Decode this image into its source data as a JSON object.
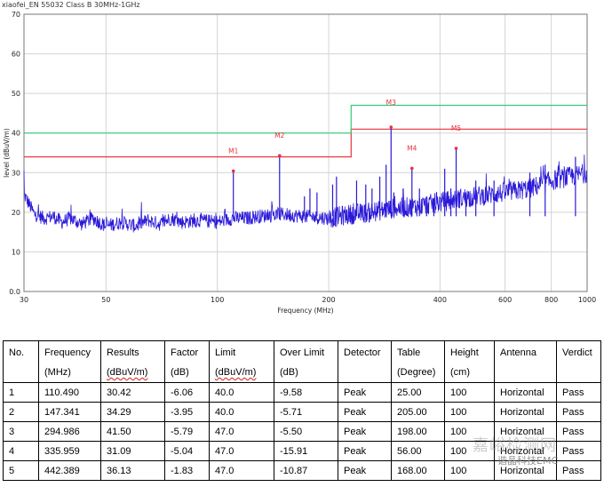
{
  "chart_data": {
    "type": "line",
    "title": "xiaofei_EN 55032 Class B 30MHz-1GHz",
    "xlabel": "Frequency (MHz)",
    "ylabel": "level (dBuV/m)",
    "xscale": "log",
    "xlim": [
      30,
      1000
    ],
    "ylim": [
      0,
      70
    ],
    "x_ticks": [
      30,
      50,
      100,
      200,
      400,
      600,
      800,
      1000
    ],
    "x_tick_labels": [
      "30",
      "50",
      "100",
      "200",
      "400",
      "600",
      "800",
      "1000"
    ],
    "y_ticks": [
      0,
      10,
      20,
      30,
      40,
      50,
      60,
      70
    ],
    "y_tick_labels": [
      "0.0",
      "10",
      "20",
      "30",
      "40",
      "50",
      "60",
      "70"
    ],
    "grid": true,
    "series": [
      {
        "kind": "limit-qp",
        "color": "#e8323c",
        "points": [
          [
            30,
            34
          ],
          [
            230,
            34
          ],
          [
            230,
            41
          ],
          [
            1000,
            41
          ]
        ]
      },
      {
        "kind": "limit-avg",
        "color": "#33cc77",
        "points": [
          [
            30,
            40
          ],
          [
            230,
            40
          ],
          [
            230,
            47
          ],
          [
            1000,
            47
          ]
        ]
      },
      {
        "kind": "trace",
        "color": "#2a18d8",
        "points": [
          [
            30,
            24.5
          ],
          [
            31,
            22
          ],
          [
            32,
            19.5
          ],
          [
            34,
            18.5
          ],
          [
            36,
            19
          ],
          [
            38,
            17.5
          ],
          [
            40,
            18.5
          ],
          [
            43,
            17
          ],
          [
            46,
            18.5
          ],
          [
            50,
            16.5
          ],
          [
            55,
            17.5
          ],
          [
            60,
            16.5
          ],
          [
            65,
            18
          ],
          [
            70,
            17
          ],
          [
            75,
            18.5
          ],
          [
            80,
            17.5
          ],
          [
            90,
            18
          ],
          [
            100,
            17.5
          ],
          [
            110,
            18.5
          ],
          [
            120,
            18.5
          ],
          [
            130,
            19
          ],
          [
            150,
            19.5
          ],
          [
            170,
            19
          ],
          [
            200,
            18.5
          ],
          [
            230,
            19.5
          ],
          [
            260,
            20
          ],
          [
            300,
            21
          ],
          [
            350,
            21.5
          ],
          [
            400,
            22.5
          ],
          [
            450,
            23.5
          ],
          [
            500,
            24
          ],
          [
            550,
            24.5
          ],
          [
            600,
            25
          ],
          [
            650,
            25.5
          ],
          [
            700,
            26
          ],
          [
            750,
            27
          ],
          [
            800,
            28
          ],
          [
            850,
            28.5
          ],
          [
            900,
            29
          ],
          [
            950,
            29.5
          ],
          [
            1000,
            30
          ]
        ]
      },
      {
        "kind": "spikes",
        "color": "#2a18d8",
        "points": [
          [
            110.49,
            30.42
          ],
          [
            147.341,
            34.29
          ],
          [
            294.986,
            41.5
          ],
          [
            335.959,
            31.09
          ],
          [
            442.389,
            36.13
          ],
          [
            172,
            24
          ],
          [
            178,
            26
          ],
          [
            186,
            25
          ],
          [
            205,
            27
          ],
          [
            210,
            29
          ],
          [
            238,
            28
          ],
          [
            252,
            27
          ],
          [
            262,
            26
          ],
          [
            275,
            29
          ],
          [
            286,
            32
          ],
          [
            300,
            25
          ],
          [
            318,
            26
          ],
          [
            352,
            26
          ],
          [
            368,
            24
          ],
          [
            385,
            23.5
          ],
          [
            412,
            31
          ],
          [
            428,
            26
          ],
          [
            470,
            25
          ],
          [
            500,
            28
          ],
          [
            560,
            28
          ],
          [
            700,
            30
          ],
          [
            770,
            32
          ],
          [
            930,
            34
          ]
        ]
      }
    ],
    "markers": [
      {
        "label": "M1",
        "x": 110.49,
        "y": 30.42
      },
      {
        "label": "M2",
        "x": 147.341,
        "y": 34.29
      },
      {
        "label": "M3",
        "x": 294.986,
        "y": 41.5
      },
      {
        "label": "M4",
        "x": 335.959,
        "y": 31.09
      },
      {
        "label": "M5",
        "x": 442.389,
        "y": 36.13
      }
    ]
  },
  "table": {
    "headers": [
      {
        "line1": "No.",
        "line2": ""
      },
      {
        "line1": "Frequency",
        "line2": "(MHz)"
      },
      {
        "line1": "Results",
        "line2": "(dBuV/m)"
      },
      {
        "line1": "Factor",
        "line2": "(dB)"
      },
      {
        "line1": "Limit",
        "line2": "(dBuV/m)"
      },
      {
        "line1": "Over Limit",
        "line2": "(dB)"
      },
      {
        "line1": "Detector",
        "line2": ""
      },
      {
        "line1": "Table",
        "line2": "(Degree)"
      },
      {
        "line1": "Height",
        "line2": "(cm)"
      },
      {
        "line1": "Antenna",
        "line2": ""
      },
      {
        "line1": "Verdict",
        "line2": ""
      }
    ],
    "rows": [
      [
        "1",
        "110.490",
        "30.42",
        "-6.06",
        "40.0",
        "-9.58",
        "Peak",
        "25.00",
        "100",
        "Horizontal",
        "Pass"
      ],
      [
        "2",
        "147.341",
        "34.29",
        "-3.95",
        "40.0",
        "-5.71",
        "Peak",
        "205.00",
        "100",
        "Horizontal",
        "Pass"
      ],
      [
        "3",
        "294.986",
        "41.50",
        "-5.79",
        "47.0",
        "-5.50",
        "Peak",
        "198.00",
        "100",
        "Horizontal",
        "Pass"
      ],
      [
        "4",
        "335.959",
        "31.09",
        "-5.04",
        "47.0",
        "-15.91",
        "Peak",
        "56.00",
        "100",
        "Horizontal",
        "Pass"
      ],
      [
        "5",
        "442.389",
        "36.13",
        "-1.83",
        "47.0",
        "-10.87",
        "Peak",
        "168.00",
        "100",
        "Horizontal",
        "Pass"
      ]
    ]
  },
  "watermark": {
    "line1": "嘉峪检测网",
    "line2": "谐晶科技EMC"
  }
}
